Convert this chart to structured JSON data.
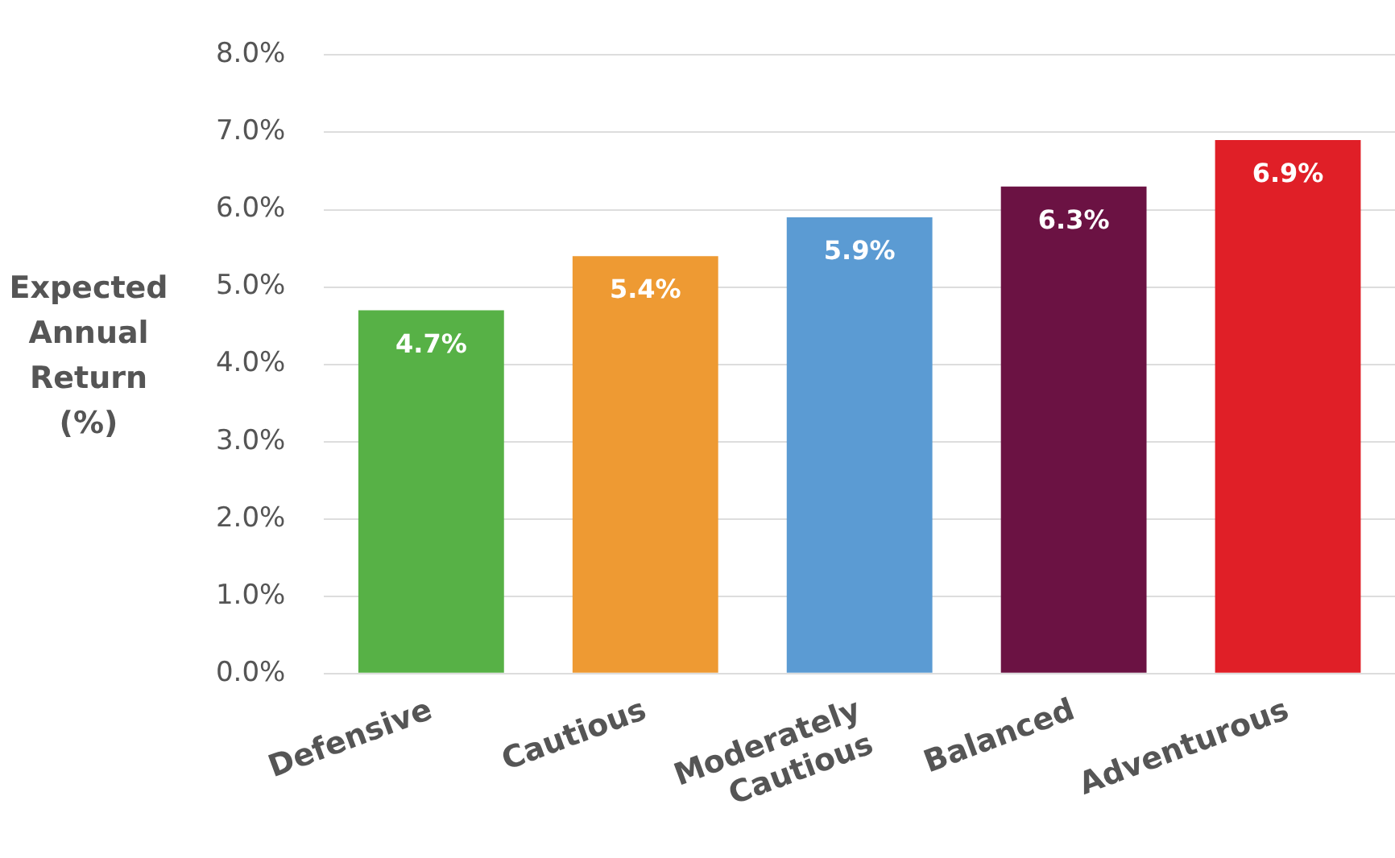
{
  "chart_data": {
    "type": "bar",
    "ylabel": "Expected Annual Return (%)",
    "categories": [
      "Defensive",
      "Cautious",
      "Moderately Cautious",
      "Balanced",
      "Adventurous"
    ],
    "values": [
      4.7,
      5.4,
      5.9,
      6.3,
      6.9
    ],
    "colors": [
      "#57b146",
      "#ee9a33",
      "#5b9bd3",
      "#6b1243",
      "#e01f27"
    ],
    "value_labels": [
      "4.7%",
      "5.4%",
      "5.9%",
      "6.3%",
      "6.9%"
    ],
    "ylim": [
      0,
      8
    ],
    "yticks": [
      {
        "value": 0,
        "label": "0.0%"
      },
      {
        "value": 1,
        "label": "1.0%"
      },
      {
        "value": 2,
        "label": "2.0%"
      },
      {
        "value": 3,
        "label": "3.0%"
      },
      {
        "value": 4,
        "label": "4.0%"
      },
      {
        "value": 5,
        "label": "5.0%"
      },
      {
        "value": 6,
        "label": "6.0%"
      },
      {
        "value": 7,
        "label": "7.0%"
      },
      {
        "value": 8,
        "label": "8.0%"
      }
    ],
    "grid": "y",
    "legend": false
  }
}
